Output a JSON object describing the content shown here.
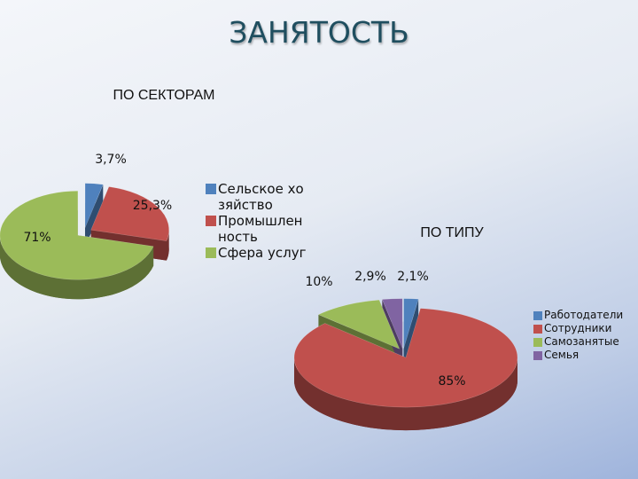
{
  "title": "ЗАНЯТОСТЬ",
  "chart_data": [
    {
      "type": "pie",
      "title": "ПО СЕКТОРАМ",
      "categories": [
        "Сельское хозяйство",
        "Промышленность",
        "Сфера услуг"
      ],
      "values": [
        3.7,
        25.3,
        71
      ],
      "value_labels": [
        "3,7%",
        "25,3%",
        "71%"
      ],
      "colors": [
        "#4f81bd",
        "#c0504d",
        "#9bbb59"
      ]
    },
    {
      "type": "pie",
      "title": "ПО ТИПУ",
      "categories": [
        "Работодатели",
        "Сотрудники",
        "Самозанятые",
        "Семья"
      ],
      "values": [
        2.1,
        85,
        10,
        2.9
      ],
      "value_labels": [
        "2,1%",
        "85%",
        "10%",
        "2,9%"
      ],
      "colors": [
        "#4f81bd",
        "#c0504d",
        "#9bbb59",
        "#8064a2"
      ]
    }
  ]
}
